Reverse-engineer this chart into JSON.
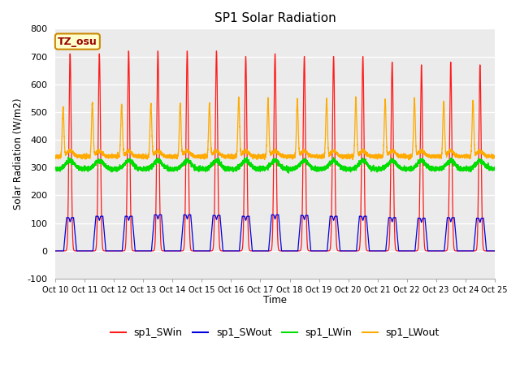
{
  "title": "SP1 Solar Radiation",
  "ylabel": "Solar Radiation (W/m2)",
  "xlabel": "Time",
  "ylim": [
    -100,
    800
  ],
  "yticks": [
    -100,
    0,
    100,
    200,
    300,
    400,
    500,
    600,
    700,
    800
  ],
  "xtick_labels": [
    "Oct 10",
    "Oct 11",
    "Oct 12",
    "Oct 13",
    "Oct 14",
    "Oct 15",
    "Oct 16",
    "Oct 17",
    "Oct 18",
    "Oct 19",
    "Oct 20",
    "Oct 21",
    "Oct 22",
    "Oct 23",
    "Oct 24",
    "Oct 25"
  ],
  "colors": {
    "sp1_SWin": "#ff1a1a",
    "sp1_SWout": "#0000dd",
    "sp1_LWin": "#00dd00",
    "sp1_LWout": "#ffaa00"
  },
  "bg_color": "#ebebeb",
  "annotation_text": "TZ_osu",
  "annotation_bg": "#ffffcc",
  "annotation_border": "#cc8800",
  "annotation_text_color": "#990000",
  "n_days": 15,
  "pts_per_day": 480,
  "sw_peak_heights": [
    710,
    710,
    720,
    720,
    720,
    720,
    700,
    710,
    700,
    700,
    700,
    680,
    670,
    680,
    670
  ],
  "swout_peak_heights": [
    120,
    125,
    125,
    130,
    130,
    128,
    125,
    130,
    128,
    125,
    125,
    120,
    118,
    120,
    118
  ],
  "lwin_base": 295,
  "lwin_day_bump": 30,
  "lwout_night": 340,
  "lwout_dawn_peak": 520,
  "lwout_dawn_peak_early": [
    520,
    530,
    525,
    530,
    530,
    530,
    550,
    545,
    545,
    545,
    550,
    545,
    545,
    540,
    540
  ],
  "lwout_day_level": 340,
  "lwout_midday_bump": 20
}
